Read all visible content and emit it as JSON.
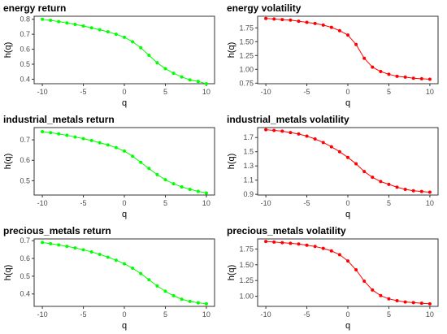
{
  "chart_data": [
    {
      "type": "line",
      "title": "energy return",
      "xlabel": "q",
      "ylabel": "h(q)",
      "x": [
        -10,
        -9,
        -8,
        -7,
        -6,
        -5,
        -4,
        -3,
        -2,
        -1,
        0,
        1,
        2,
        3,
        4,
        5,
        6,
        7,
        8,
        9,
        10
      ],
      "series": [
        {
          "values": [
            0.8,
            0.793,
            0.784,
            0.775,
            0.766,
            0.755,
            0.743,
            0.73,
            0.716,
            0.7,
            0.68,
            0.65,
            0.61,
            0.56,
            0.51,
            0.47,
            0.44,
            0.415,
            0.395,
            0.385,
            0.37
          ]
        }
      ],
      "ylim": [
        0.37,
        0.82
      ],
      "yticks": [
        0.4,
        0.5,
        0.6,
        0.7,
        0.8
      ],
      "ytick_labels": [
        "0.4",
        "0.5",
        "0.6",
        "0.7",
        "0.8"
      ],
      "xticks": [
        -10,
        -5,
        0,
        5,
        10
      ],
      "xtick_labels": [
        "-10",
        "-5",
        "0",
        "5",
        "10"
      ],
      "color": "#00ff00",
      "grid": false
    },
    {
      "type": "line",
      "title": "energy volatility",
      "xlabel": "q",
      "ylabel": "h(q)",
      "x": [
        -10,
        -9,
        -8,
        -7,
        -6,
        -5,
        -4,
        -3,
        -2,
        -1,
        0,
        1,
        2,
        3,
        4,
        5,
        6,
        7,
        8,
        9,
        10
      ],
      "series": [
        {
          "values": [
            1.92,
            1.91,
            1.9,
            1.89,
            1.87,
            1.85,
            1.83,
            1.8,
            1.76,
            1.7,
            1.62,
            1.45,
            1.2,
            1.04,
            0.96,
            0.91,
            0.875,
            0.86,
            0.84,
            0.83,
            0.82
          ]
        }
      ],
      "ylim": [
        0.74,
        1.96
      ],
      "yticks": [
        0.75,
        1.0,
        1.25,
        1.5,
        1.75
      ],
      "ytick_labels": [
        "0.75",
        "1.00",
        "1.25",
        "1.50",
        "1.75"
      ],
      "xticks": [
        -10,
        -5,
        0,
        5,
        10
      ],
      "xtick_labels": [
        "-10",
        "-5",
        "0",
        "5",
        "10"
      ],
      "color": "#ff0000",
      "grid": false
    },
    {
      "type": "line",
      "title": "industrial_metals return",
      "xlabel": "q",
      "ylabel": "h(q)",
      "x": [
        -10,
        -9,
        -8,
        -7,
        -6,
        -5,
        -4,
        -3,
        -2,
        -1,
        0,
        1,
        2,
        3,
        4,
        5,
        6,
        7,
        8,
        9,
        10
      ],
      "series": [
        {
          "values": [
            0.74,
            0.735,
            0.729,
            0.722,
            0.714,
            0.706,
            0.697,
            0.686,
            0.675,
            0.662,
            0.645,
            0.62,
            0.59,
            0.56,
            0.53,
            0.505,
            0.485,
            0.47,
            0.458,
            0.448,
            0.44
          ]
        }
      ],
      "ylim": [
        0.43,
        0.76
      ],
      "yticks": [
        0.5,
        0.6,
        0.7
      ],
      "ytick_labels": [
        "0.5",
        "0.6",
        "0.7"
      ],
      "xticks": [
        -10,
        -5,
        0,
        5,
        10
      ],
      "xtick_labels": [
        "-10",
        "-5",
        "0",
        "5",
        "10"
      ],
      "color": "#00ff00",
      "grid": false
    },
    {
      "type": "line",
      "title": "industrial_metals volatility",
      "xlabel": "q",
      "ylabel": "h(q)",
      "x": [
        -10,
        -9,
        -8,
        -7,
        -6,
        -5,
        -4,
        -3,
        -2,
        -1,
        0,
        1,
        2,
        3,
        4,
        5,
        6,
        7,
        8,
        9,
        10
      ],
      "series": [
        {
          "values": [
            1.81,
            1.8,
            1.79,
            1.77,
            1.75,
            1.72,
            1.68,
            1.63,
            1.57,
            1.5,
            1.42,
            1.33,
            1.22,
            1.14,
            1.08,
            1.04,
            1.0,
            0.97,
            0.95,
            0.94,
            0.93
          ]
        }
      ],
      "ylim": [
        0.89,
        1.84
      ],
      "yticks": [
        0.9,
        1.1,
        1.3,
        1.5,
        1.7
      ],
      "ytick_labels": [
        "0.9",
        "1.1",
        "1.3",
        "1.5",
        "1.7"
      ],
      "xticks": [
        -10,
        -5,
        0,
        5,
        10
      ],
      "xtick_labels": [
        "-10",
        "-5",
        "0",
        "5",
        "10"
      ],
      "color": "#ff0000",
      "grid": false
    },
    {
      "type": "line",
      "title": "precious_metals return",
      "xlabel": "q",
      "ylabel": "h(q)",
      "x": [
        -10,
        -9,
        -8,
        -7,
        -6,
        -5,
        -4,
        -3,
        -2,
        -1,
        0,
        1,
        2,
        3,
        4,
        5,
        6,
        7,
        8,
        9,
        10
      ],
      "series": [
        {
          "values": [
            0.69,
            0.683,
            0.676,
            0.668,
            0.659,
            0.649,
            0.637,
            0.623,
            0.607,
            0.59,
            0.57,
            0.545,
            0.515,
            0.48,
            0.445,
            0.415,
            0.39,
            0.37,
            0.358,
            0.35,
            0.345
          ]
        }
      ],
      "ylim": [
        0.33,
        0.71
      ],
      "yticks": [
        0.4,
        0.5,
        0.6,
        0.7
      ],
      "ytick_labels": [
        "0.4",
        "0.5",
        "0.6",
        "0.7"
      ],
      "xticks": [
        -10,
        -5,
        0,
        5,
        10
      ],
      "xtick_labels": [
        "-10",
        "-5",
        "0",
        "5",
        "10"
      ],
      "color": "#00ff00",
      "grid": false
    },
    {
      "type": "line",
      "title": "precious_metals volatility",
      "xlabel": "q",
      "ylabel": "h(q)",
      "x": [
        -10,
        -9,
        -8,
        -7,
        -6,
        -5,
        -4,
        -3,
        -2,
        -1,
        0,
        1,
        2,
        3,
        4,
        5,
        6,
        7,
        8,
        9,
        10
      ],
      "series": [
        {
          "values": [
            1.87,
            1.86,
            1.85,
            1.84,
            1.83,
            1.81,
            1.79,
            1.76,
            1.72,
            1.66,
            1.56,
            1.42,
            1.24,
            1.1,
            1.01,
            0.96,
            0.93,
            0.91,
            0.9,
            0.89,
            0.88
          ]
        }
      ],
      "ylim": [
        0.84,
        1.91
      ],
      "yticks": [
        1.0,
        1.25,
        1.5,
        1.75
      ],
      "ytick_labels": [
        "1.00",
        "1.25",
        "1.50",
        "1.75"
      ],
      "xticks": [
        -10,
        -5,
        0,
        5,
        10
      ],
      "xtick_labels": [
        "-10",
        "-5",
        "0",
        "5",
        "10"
      ],
      "color": "#ff0000",
      "grid": false
    }
  ]
}
